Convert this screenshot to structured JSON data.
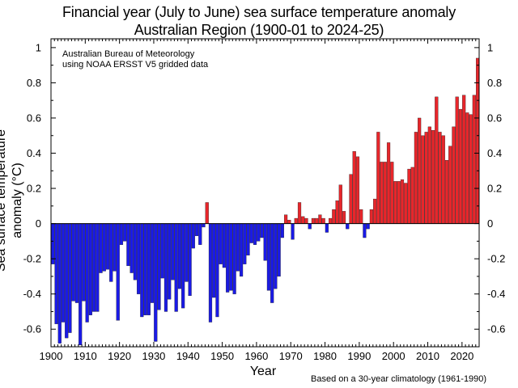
{
  "chart_data": {
    "type": "bar",
    "title": "Financial year (July to June) sea surface temperature anomaly",
    "subtitle": "Australian Region (1900-01 to 2024-25)",
    "annotation": [
      "Australian Bureau of Meteorology",
      "using NOAA ERSST V5 gridded data"
    ],
    "xlabel": "Year",
    "ylabel": "Sea surface temperature anomaly (°C)",
    "footnote": "Based on a 30-year climatology (1961-1990)",
    "xlim": [
      1900,
      2025
    ],
    "ylim": [
      -0.7,
      1.05
    ],
    "x_ticks": [
      1900,
      1910,
      1920,
      1930,
      1940,
      1950,
      1960,
      1970,
      1980,
      1990,
      2000,
      2010,
      2020
    ],
    "y_ticks": [
      -0.6,
      -0.4,
      -0.2,
      0,
      0.2,
      0.4,
      0.6,
      0.8,
      1
    ],
    "y_tick_labels": [
      "-0.6",
      "-0.4",
      "-0.2",
      "0",
      "0.2",
      "0.4",
      "0.6",
      "0.8",
      "1"
    ],
    "colors": {
      "positive": "#e8262b",
      "negative": "#1a1ae6"
    },
    "years": [
      1900,
      1901,
      1902,
      1903,
      1904,
      1905,
      1906,
      1907,
      1908,
      1909,
      1910,
      1911,
      1912,
      1913,
      1914,
      1915,
      1916,
      1917,
      1918,
      1919,
      1920,
      1921,
      1922,
      1923,
      1924,
      1925,
      1926,
      1927,
      1928,
      1929,
      1930,
      1931,
      1932,
      1933,
      1934,
      1935,
      1936,
      1937,
      1938,
      1939,
      1940,
      1941,
      1942,
      1943,
      1944,
      1945,
      1946,
      1947,
      1948,
      1949,
      1950,
      1951,
      1952,
      1953,
      1954,
      1955,
      1956,
      1957,
      1958,
      1959,
      1960,
      1961,
      1962,
      1963,
      1964,
      1965,
      1966,
      1967,
      1968,
      1969,
      1970,
      1971,
      1972,
      1973,
      1974,
      1975,
      1976,
      1977,
      1978,
      1979,
      1980,
      1981,
      1982,
      1983,
      1984,
      1985,
      1986,
      1987,
      1988,
      1989,
      1990,
      1991,
      1992,
      1993,
      1994,
      1995,
      1996,
      1997,
      1998,
      1999,
      2000,
      2001,
      2002,
      2003,
      2004,
      2005,
      2006,
      2007,
      2008,
      2009,
      2010,
      2011,
      2012,
      2013,
      2014,
      2015,
      2016,
      2017,
      2018,
      2019,
      2020,
      2021,
      2022,
      2023,
      2024
    ],
    "values": [
      -0.23,
      -0.57,
      -0.68,
      -0.56,
      -0.65,
      -0.62,
      -0.44,
      -0.45,
      -0.69,
      -0.44,
      -0.56,
      -0.52,
      -0.5,
      -0.5,
      -0.28,
      -0.27,
      -0.26,
      -0.33,
      -0.27,
      -0.55,
      -0.12,
      -0.1,
      -0.24,
      -0.28,
      -0.32,
      -0.4,
      -0.53,
      -0.52,
      -0.52,
      -0.45,
      -0.67,
      -0.49,
      -0.31,
      -0.5,
      -0.43,
      -0.32,
      -0.5,
      -0.37,
      -0.48,
      -0.33,
      -0.41,
      -0.14,
      -0.07,
      -0.12,
      -0.02,
      0.12,
      -0.56,
      -0.42,
      -0.53,
      -0.23,
      -0.25,
      -0.39,
      -0.38,
      -0.4,
      -0.27,
      -0.3,
      -0.23,
      -0.18,
      -0.11,
      -0.12,
      -0.1,
      -0.08,
      -0.21,
      -0.38,
      -0.45,
      -0.37,
      -0.3,
      -0.08,
      0.05,
      0.02,
      -0.09,
      0.03,
      0.12,
      0.04,
      0.03,
      -0.03,
      0.03,
      0.03,
      0.05,
      0.03,
      -0.05,
      0.03,
      0.08,
      0.13,
      0.22,
      0.07,
      -0.03,
      0.28,
      0.41,
      0.38,
      0.08,
      -0.08,
      -0.03,
      0.08,
      0.14,
      0.52,
      0.35,
      0.35,
      0.46,
      0.35,
      0.24,
      0.24,
      0.25,
      0.23,
      0.31,
      0.32,
      0.52,
      0.6,
      0.5,
      0.52,
      0.55,
      0.53,
      0.72,
      0.52,
      0.5,
      0.36,
      0.44,
      0.55,
      0.72,
      0.65,
      0.73,
      0.63,
      0.62,
      0.73,
      0.94
    ]
  }
}
